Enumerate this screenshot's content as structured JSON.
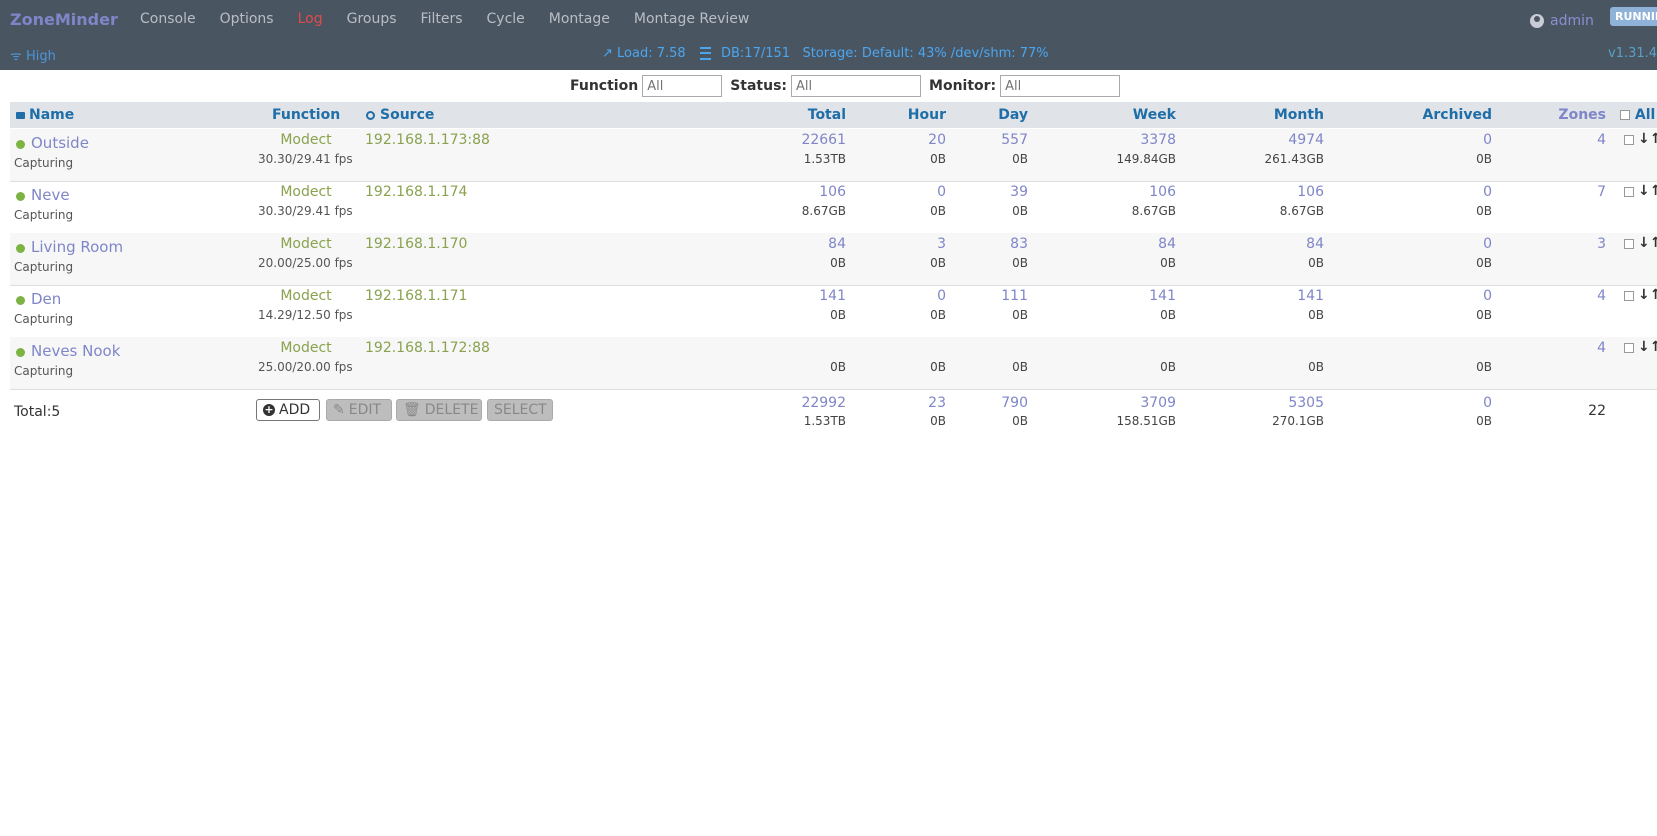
{
  "navbar": {
    "brand": "ZoneMinder",
    "links": [
      "Console",
      "Options",
      "Log",
      "Groups",
      "Filters",
      "Cycle",
      "Montage",
      "Montage Review"
    ],
    "user": "admin",
    "state": "RUNNING",
    "bandwidth": "High",
    "load": "Load: 7.58",
    "db": "DB:17/151",
    "storage": "Storage: Default: 43% /dev/shm: 77%",
    "version": "v1.31.4"
  },
  "filters": {
    "function_label": "Function",
    "function_value": "All",
    "status_label": "Status:",
    "status_value": "All",
    "monitor_label": "Monitor:",
    "monitor_value": "All"
  },
  "columns": {
    "name": "Name",
    "function": "Function",
    "source": "Source",
    "total": "Total",
    "hour": "Hour",
    "day": "Day",
    "week": "Week",
    "month": "Month",
    "archived": "Archived",
    "zones": "Zones",
    "all": "All"
  },
  "monitors": [
    {
      "name": "Outside",
      "status": "Capturing",
      "function": "Modect",
      "fps": "30.30/29.41 fps",
      "source": "192.168.1.173:88",
      "total": "22661",
      "total_size": "1.53TB",
      "hour": "20",
      "hour_size": "0B",
      "day": "557",
      "day_size": "0B",
      "week": "3378",
      "week_size": "149.84GB",
      "month": "4974",
      "month_size": "261.43GB",
      "archived": "0",
      "archived_size": "0B",
      "zones": "4"
    },
    {
      "name": "Neve",
      "status": "Capturing",
      "function": "Modect",
      "fps": "30.30/29.41 fps",
      "source": "192.168.1.174",
      "total": "106",
      "total_size": "8.67GB",
      "hour": "0",
      "hour_size": "0B",
      "day": "39",
      "day_size": "0B",
      "week": "106",
      "week_size": "8.67GB",
      "month": "106",
      "month_size": "8.67GB",
      "archived": "0",
      "archived_size": "0B",
      "zones": "7"
    },
    {
      "name": "Living Room",
      "status": "Capturing",
      "function": "Modect",
      "fps": "20.00/25.00 fps",
      "source": "192.168.1.170",
      "total": "84",
      "total_size": "0B",
      "hour": "3",
      "hour_size": "0B",
      "day": "83",
      "day_size": "0B",
      "week": "84",
      "week_size": "0B",
      "month": "84",
      "month_size": "0B",
      "archived": "0",
      "archived_size": "0B",
      "zones": "3"
    },
    {
      "name": "Den",
      "status": "Capturing",
      "function": "Modect",
      "fps": "14.29/12.50 fps",
      "source": "192.168.1.171",
      "total": "141",
      "total_size": "0B",
      "hour": "0",
      "hour_size": "0B",
      "day": "111",
      "day_size": "0B",
      "week": "141",
      "week_size": "0B",
      "month": "141",
      "month_size": "0B",
      "archived": "0",
      "archived_size": "0B",
      "zones": "4"
    },
    {
      "name": "Neves Nook",
      "status": "Capturing",
      "function": "Modect",
      "fps": "25.00/20.00 fps",
      "source": "192.168.1.172:88",
      "total": "",
      "total_size": "0B",
      "hour": "",
      "hour_size": "0B",
      "day": "",
      "day_size": "0B",
      "week": "",
      "week_size": "0B",
      "month": "",
      "month_size": "0B",
      "archived": "",
      "archived_size": "0B",
      "zones": "4"
    }
  ],
  "totals": {
    "label": "Total:5",
    "add": "ADD",
    "edit": "EDIT",
    "delete": "DELETE",
    "select": "SELECT",
    "total": "22992",
    "total_size": "1.53TB",
    "hour": "23",
    "hour_size": "0B",
    "day": "790",
    "day_size": "0B",
    "week": "3709",
    "week_size": "158.51GB",
    "month": "5305",
    "month_size": "270.1GB",
    "archived": "0",
    "archived_size": "0B",
    "zones": "22"
  }
}
